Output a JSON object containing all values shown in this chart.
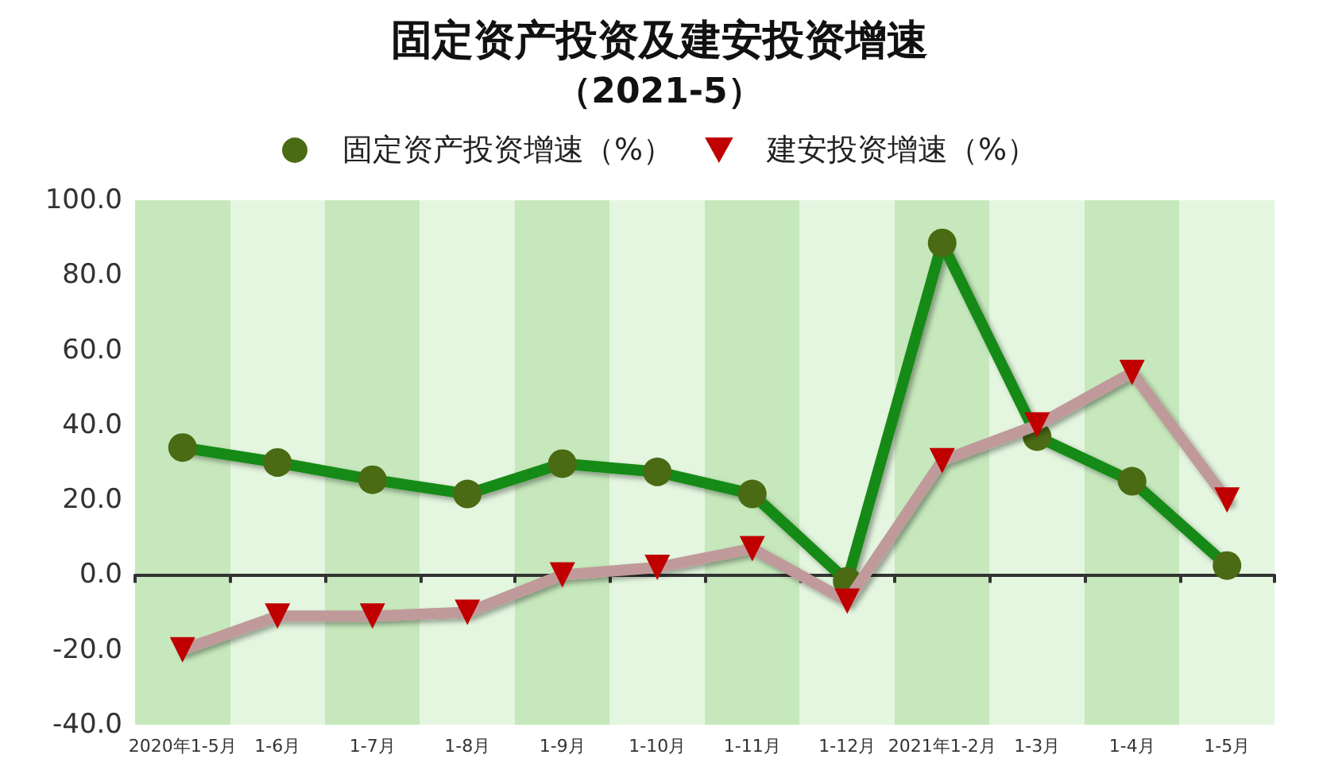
{
  "chart_data": {
    "type": "line",
    "title": "固定资产投资及建安投资增速",
    "subtitle": "（2021-5）",
    "categories": [
      "2020年1-5月",
      "1-6月",
      "1-7月",
      "1-8月",
      "1-9月",
      "1-10月",
      "1-11月",
      "1-12月",
      "2021年1-2月",
      "1-3月",
      "1-4月",
      "1-5月"
    ],
    "series": [
      {
        "name": "固定资产投资增速（%）",
        "color": "#138a13",
        "marker": "circle",
        "values": [
          34,
          30,
          25.4,
          21.6,
          29.7,
          27.5,
          21.6,
          -1.7,
          88.6,
          36.9,
          25,
          2.5
        ]
      },
      {
        "name": "建安投资增速（%）",
        "color": "#c09a9a",
        "marker": "triangle",
        "values": [
          -20,
          -11,
          -11,
          -10,
          0,
          2,
          7,
          -7,
          30.5,
          40,
          54,
          20
        ]
      }
    ],
    "ylim": [
      -40,
      100
    ],
    "yticks": [
      {
        "value": -40,
        "label": "-40.0"
      },
      {
        "value": -20,
        "label": "-20.0"
      },
      {
        "value": 0,
        "label": "0.0"
      },
      {
        "value": 20,
        "label": "20.0"
      },
      {
        "value": 40,
        "label": "40.0"
      },
      {
        "value": 60,
        "label": "60.0"
      },
      {
        "value": 80,
        "label": "80.0"
      },
      {
        "value": 100,
        "label": "100.0"
      }
    ],
    "legend": "top",
    "line_style": "solid"
  }
}
